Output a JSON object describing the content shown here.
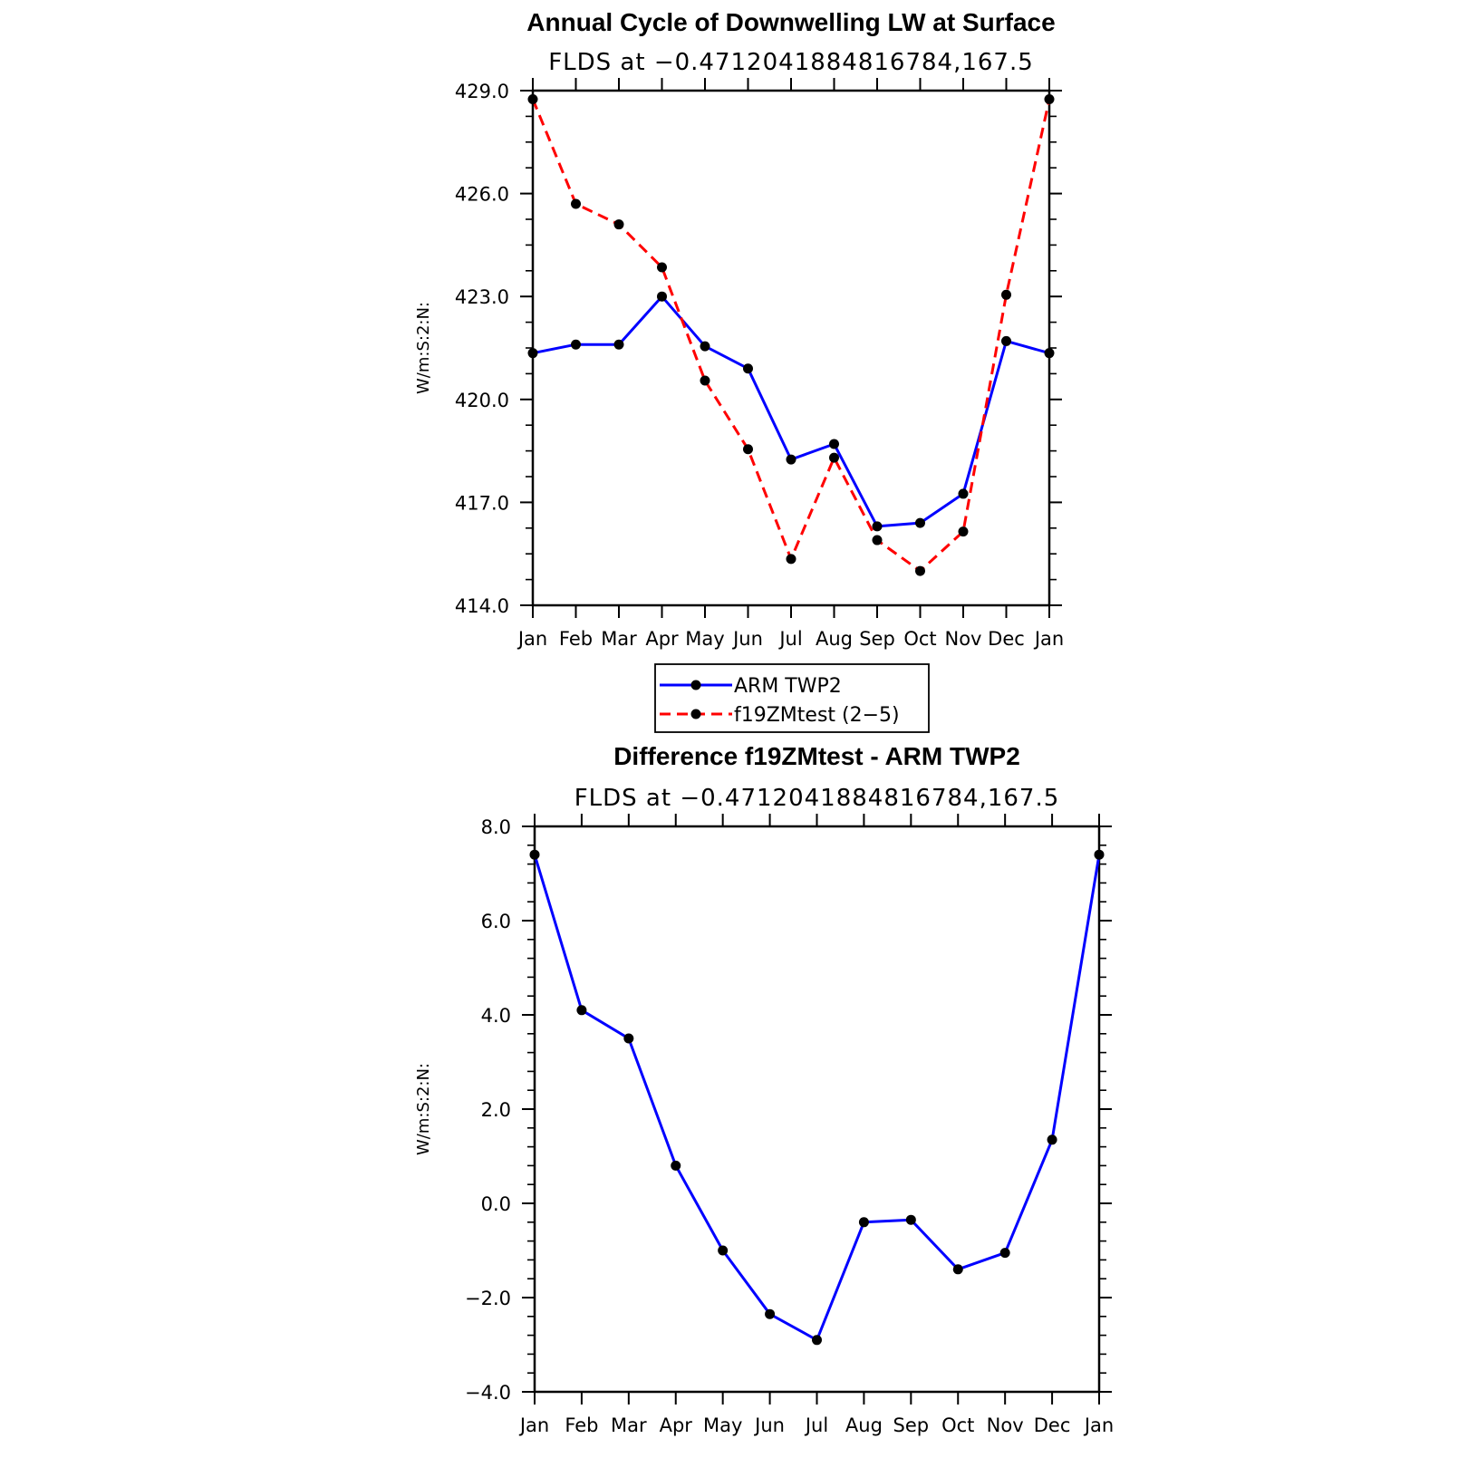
{
  "chart_data": [
    {
      "type": "line",
      "title": "Annual Cycle of Downwelling LW at Surface",
      "subtitle": "FLDS at −0.4712041884816784,167.5",
      "ylabel": "W/m:S:2:N:",
      "categories": [
        "Jan",
        "Feb",
        "Mar",
        "Apr",
        "May",
        "Jun",
        "Jul",
        "Aug",
        "Sep",
        "Oct",
        "Nov",
        "Dec",
        "Jan"
      ],
      "ylim": [
        414.0,
        429.0
      ],
      "yticks": [
        414.0,
        417.0,
        420.0,
        423.0,
        426.0,
        429.0
      ],
      "ytick_labels": [
        "414.0",
        "417.0",
        "420.0",
        "423.0",
        "426.0",
        "429.0"
      ],
      "series": [
        {
          "name": "ARM TWP2",
          "color": "#0000ff",
          "dashed": false,
          "values": [
            421.35,
            421.6,
            421.6,
            423.0,
            421.55,
            420.9,
            418.25,
            418.7,
            416.3,
            416.4,
            417.25,
            421.7,
            421.35
          ]
        },
        {
          "name": "f19ZMtest (2−5)",
          "color": "#ff0000",
          "dashed": true,
          "values": [
            428.75,
            425.7,
            425.1,
            423.85,
            420.55,
            418.55,
            415.35,
            418.3,
            415.9,
            415.0,
            416.15,
            423.05,
            428.75
          ]
        }
      ],
      "legend": {
        "position": "bottom-center",
        "entries": [
          "ARM TWP2",
          "f19ZMtest (2−5)"
        ]
      }
    },
    {
      "type": "line",
      "title": "Difference f19ZMtest - ARM TWP2",
      "subtitle": "FLDS at −0.4712041884816784,167.5",
      "ylabel": "W/m:S:2:N:",
      "categories": [
        "Jan",
        "Feb",
        "Mar",
        "Apr",
        "May",
        "Jun",
        "Jul",
        "Aug",
        "Sep",
        "Oct",
        "Nov",
        "Dec",
        "Jan"
      ],
      "ylim": [
        -4.0,
        8.0
      ],
      "yticks": [
        -4.0,
        -2.0,
        0.0,
        2.0,
        4.0,
        6.0,
        8.0
      ],
      "ytick_labels": [
        "−4.0",
        "−2.0",
        "0.0",
        "2.0",
        "4.0",
        "6.0",
        "8.0"
      ],
      "series": [
        {
          "name": "Difference",
          "color": "#0000ff",
          "dashed": false,
          "values": [
            7.4,
            4.1,
            3.5,
            0.8,
            -1.0,
            -2.35,
            -2.9,
            -0.4,
            -0.35,
            -1.4,
            -1.05,
            1.35,
            7.4
          ]
        }
      ]
    }
  ]
}
